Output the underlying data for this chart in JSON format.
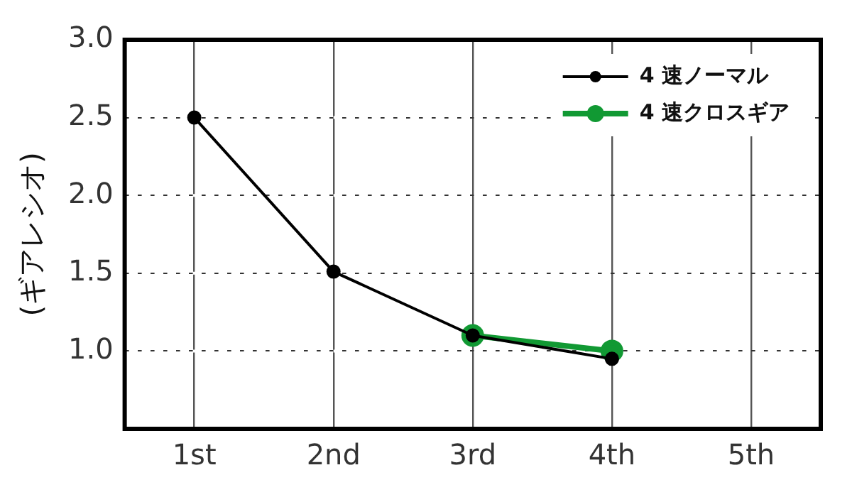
{
  "chart_data": {
    "type": "line",
    "ylabel": "(ギアレシオ)",
    "categories": [
      "1st",
      "2nd",
      "3rd",
      "4th",
      "5th"
    ],
    "series": [
      {
        "name": "4 速ノーマル",
        "color": "#000000",
        "values": [
          2.5,
          1.51,
          1.1,
          0.95,
          null
        ]
      },
      {
        "name": "4 速クロスギア",
        "color": "#119933",
        "values": [
          null,
          null,
          1.1,
          1.0,
          null
        ]
      }
    ],
    "ylim": [
      0.5,
      3.0
    ],
    "yticks": [
      {
        "value": 1,
        "label": "1.0"
      },
      {
        "value": 1.5,
        "label": "1.5"
      },
      {
        "value": 2,
        "label": "2.0"
      },
      {
        "value": 2.5,
        "label": "2.5"
      },
      {
        "value": 3,
        "label": "3.0"
      }
    ],
    "grid": true,
    "legend": "top right",
    "marker": "circle",
    "line_style": "solid"
  }
}
